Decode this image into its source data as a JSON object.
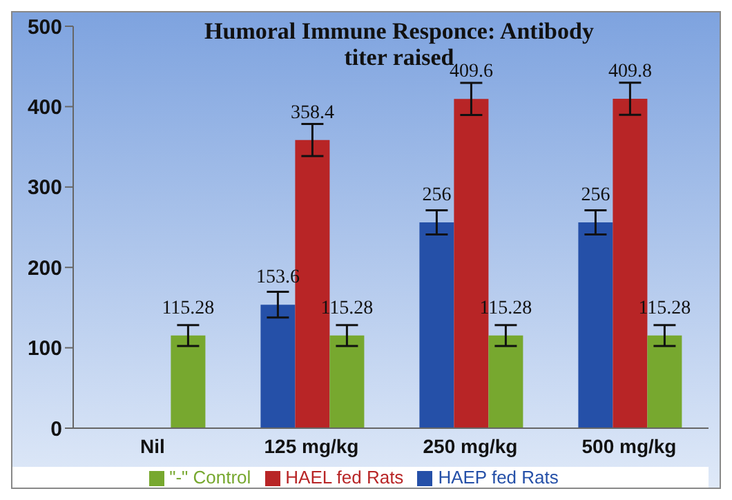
{
  "chart_data": {
    "type": "bar",
    "title": "Humoral Immune Responce: Antibody titer raised",
    "categories": [
      "Nil",
      "125 mg/kg",
      "250 mg/kg",
      "500 mg/kg"
    ],
    "series": [
      {
        "name": "HAEP fed Rats",
        "color": "#2550a8",
        "values": [
          null,
          153.6,
          256,
          256
        ],
        "errors": [
          null,
          16,
          15,
          15
        ]
      },
      {
        "name": "HAEL fed Rats",
        "color": "#b82526",
        "values": [
          null,
          358.4,
          409.6,
          409.8
        ],
        "errors": [
          null,
          20,
          20,
          20
        ]
      },
      {
        "name": "\"-\" Control",
        "color": "#77a82f",
        "values": [
          115.28,
          115.28,
          115.28,
          115.28
        ],
        "errors": [
          13,
          13,
          13,
          13
        ]
      }
    ],
    "ylim": [
      0,
      500
    ],
    "yticks": [
      0,
      100,
      200,
      300,
      400,
      500
    ],
    "grid": false,
    "legend": "bottom",
    "data_labels": true
  }
}
